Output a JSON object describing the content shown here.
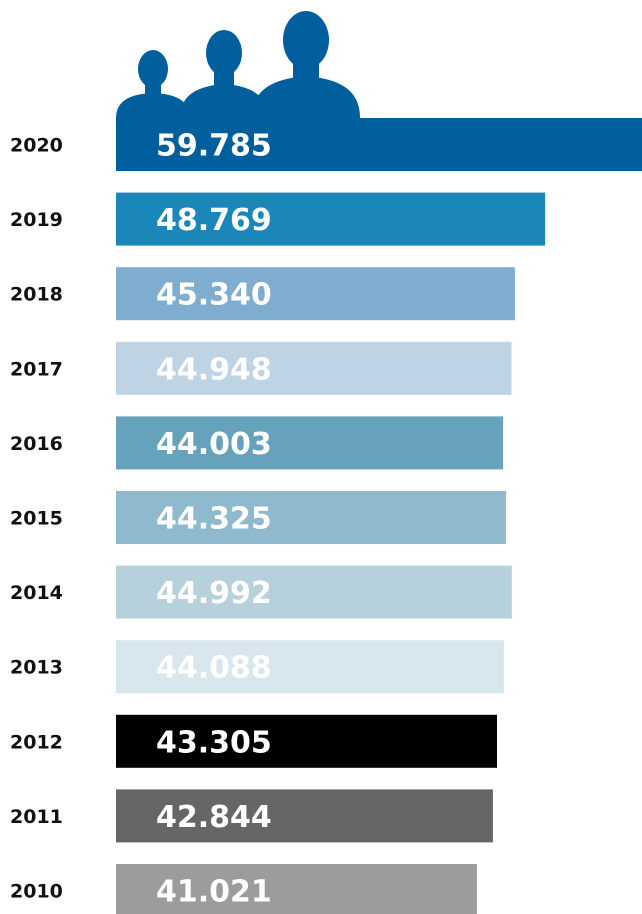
{
  "chart_data": {
    "type": "bar",
    "orientation": "horizontal",
    "categories": [
      "2020",
      "2019",
      "2018",
      "2017",
      "2016",
      "2015",
      "2014",
      "2013",
      "2012",
      "2011",
      "2010"
    ],
    "values": [
      59785,
      48769,
      45340,
      44948,
      44003,
      44325,
      44992,
      44088,
      43305,
      42844,
      41021
    ],
    "value_labels": [
      "59.785",
      "48.769",
      "45.340",
      "44.948",
      "44.003",
      "44.325",
      "44.992",
      "44.088",
      "43.305",
      "42.844",
      "41.021"
    ],
    "colors": [
      "#005f9c",
      "#1b86b8",
      "#7eadd0",
      "#bed4e5",
      "#66a2bb",
      "#8fb9cc",
      "#b6d0dc",
      "#d8e6ee",
      "#000000",
      "#666666",
      "#9c9c9c"
    ],
    "xlim": [
      0,
      59785
    ],
    "icon": "people-silhouette-icon"
  }
}
